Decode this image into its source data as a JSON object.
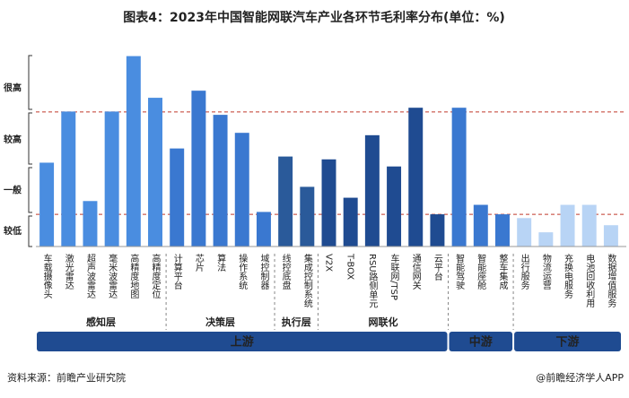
{
  "chart_data": {
    "type": "bar",
    "title": "图表4：2023年中国智能网联汽车产业各环节毛利率分布(单位：%)",
    "categories": [
      "车载摄像头",
      "激光雷达",
      "超声波雷达",
      "毫米波雷达",
      "高精度地图",
      "高精度定位",
      "计算平台",
      "芯片",
      "算法",
      "操作系统",
      "域控制器",
      "线控底盘",
      "集成控制系统",
      "V2X",
      "T-BOX",
      "RSU路侧单元",
      "车联网/TSP",
      "通信网关",
      "云平台",
      "智能驾驶",
      "智能座舱",
      "整车集成",
      "出行服务",
      "物流运营",
      "充换电服务",
      "电池回收利用",
      "数据增值服务"
    ],
    "values": [
      1.77,
      2.85,
      0.96,
      2.85,
      4.02,
      3.14,
      2.07,
      3.29,
      2.78,
      2.4,
      0.73,
      1.9,
      1.26,
      1.84,
      1.03,
      2.35,
      1.69,
      2.93,
      0.68,
      2.93,
      0.88,
      0.68,
      0.6,
      0.3,
      0.88,
      0.88,
      0.45
    ],
    "colors": [
      "#4a8de0",
      "#4a8de0",
      "#4a8de0",
      "#4a8de0",
      "#4a8de0",
      "#4a8de0",
      "#3a78d0",
      "#3a78d0",
      "#3a78d0",
      "#3a78d0",
      "#3a78d0",
      "#2a5a9a",
      "#2a5a9a",
      "#1f4b91",
      "#1f4b91",
      "#1f4b91",
      "#1f4b91",
      "#1f4b91",
      "#1f4b91",
      "#3a78d0",
      "#3a78d0",
      "#3a78d0",
      "#b8d4f5",
      "#b8d4f5",
      "#b8d4f5",
      "#b8d4f5",
      "#b8d4f5"
    ],
    "ylim": [
      0,
      4.05
    ],
    "yticks": [
      {
        "value": 3.34,
        "label": "很高"
      },
      {
        "value": 2.25,
        "label": "较高"
      },
      {
        "value": 1.18,
        "label": "一般"
      },
      {
        "value": 0.32,
        "label": "较低"
      }
    ],
    "reference_lines": [
      2.84,
      0.68
    ],
    "groups": [
      {
        "label": "感知层",
        "count": 6
      },
      {
        "label": "决策层",
        "count": 5
      },
      {
        "label": "执行层",
        "count": 2
      },
      {
        "label": "网联化",
        "count": 6
      }
    ],
    "stages": [
      {
        "label": "上游",
        "count": 19
      },
      {
        "label": "中游",
        "count": 3
      },
      {
        "label": "下游",
        "count": 5
      }
    ],
    "source": "资料来源：前瞻产业研究院",
    "credit": "@前瞻经济学人APP"
  }
}
